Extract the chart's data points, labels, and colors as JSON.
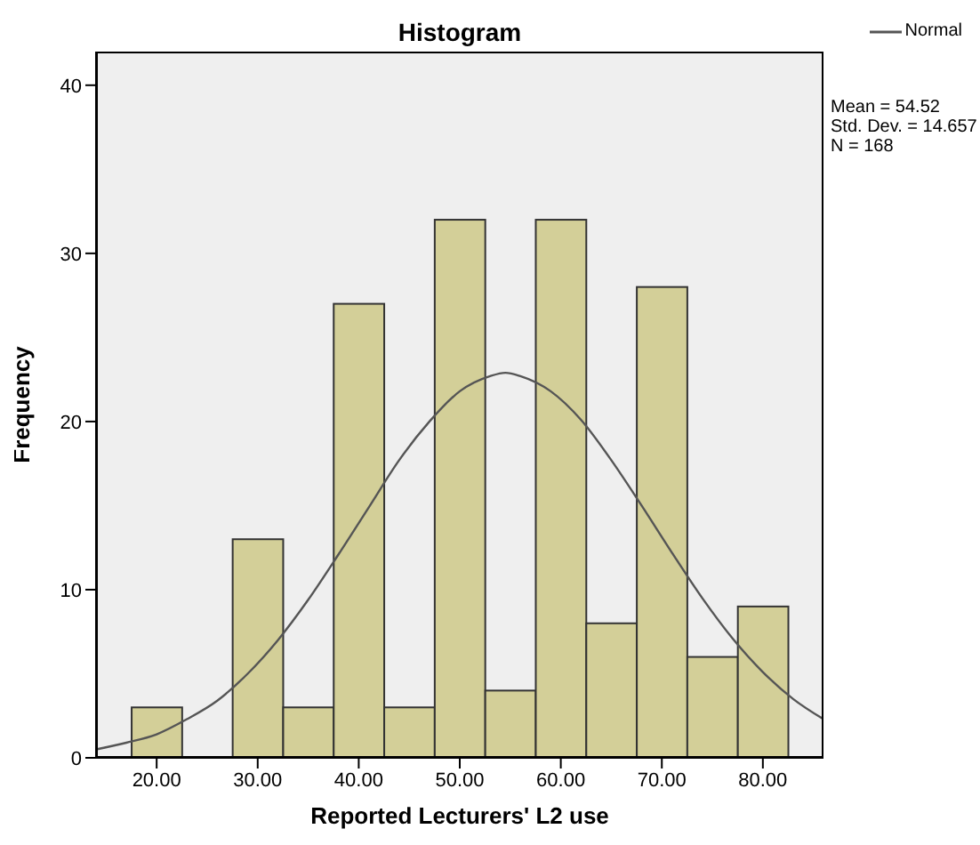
{
  "chart_data": {
    "type": "histogram",
    "title": "Histogram",
    "xlabel": "Reported Lecturers' L2 use",
    "ylabel": "Frequency",
    "bins": [
      17.5,
      22.5,
      27.5,
      32.5,
      37.5,
      42.5,
      47.5,
      52.5,
      57.5,
      62.5,
      67.5,
      72.5,
      77.5,
      82.5
    ],
    "values": [
      3,
      0,
      13,
      3,
      27,
      3,
      32,
      4,
      32,
      8,
      28,
      6,
      9
    ],
    "color": "#d3cf98",
    "series": [
      {
        "name": "Normal",
        "type": "line",
        "color": "#555555",
        "x": [
          14,
          17,
          20,
          23,
          26,
          29,
          32,
          35,
          38,
          41,
          44,
          47,
          50,
          53,
          54.52,
          56,
          59,
          62,
          65,
          68,
          71,
          74,
          77,
          80,
          83,
          86
        ],
        "values": [
          0.5,
          0.9,
          1.4,
          2.3,
          3.4,
          5.0,
          7.0,
          9.4,
          12.1,
          14.9,
          17.7,
          20.0,
          21.8,
          22.7,
          22.9,
          22.7,
          21.8,
          20.1,
          17.7,
          15.0,
          12.2,
          9.5,
          7.1,
          5.1,
          3.5,
          2.3
        ]
      }
    ],
    "annotations": [
      "Mean = 54.52",
      "Std. Dev. = 14.657",
      "N = 168"
    ],
    "xlim": [
      14,
      86
    ],
    "ylim": [
      0,
      42
    ],
    "xticks": [
      {
        "value": 20,
        "label": "20.00"
      },
      {
        "value": 30,
        "label": "30.00"
      },
      {
        "value": 40,
        "label": "40.00"
      },
      {
        "value": 50,
        "label": "50.00"
      },
      {
        "value": 60,
        "label": "60.00"
      },
      {
        "value": 70,
        "label": "70.00"
      },
      {
        "value": 80,
        "label": "80.00"
      }
    ],
    "yticks": [
      0,
      10,
      20,
      30,
      40
    ],
    "grid": false,
    "legend": "top right",
    "marker": "none",
    "line_style": "solid"
  }
}
